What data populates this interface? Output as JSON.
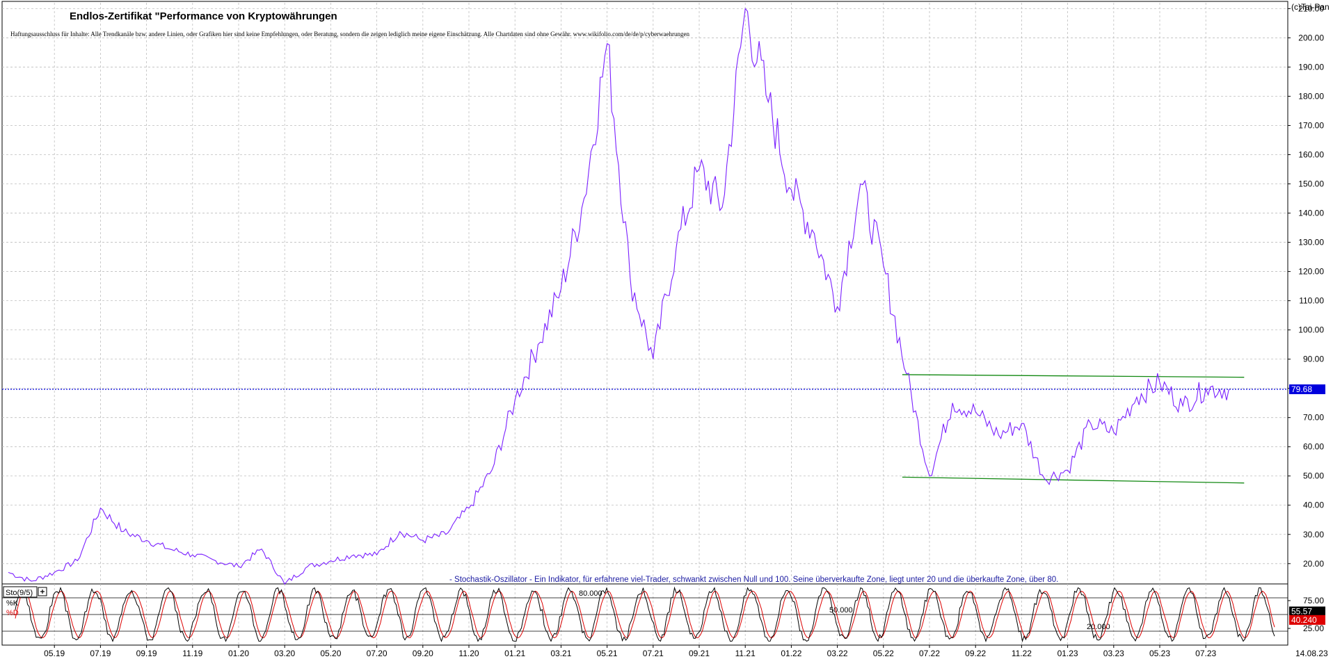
{
  "header": {
    "title": "Endlos-Zertifikat \"Performance von Kryptowährungen",
    "disclaimer": "Haftungsausschluss für Inhalte: Alle Trendkanäle bzw. andere Linien, oder Grafiken hier sind keine Empfehlungen, oder Beratung, sondern die zeigen lediglich meine eigene Einschätzung. Alle Chartdaten sind ohne Gewähr. www.wikifolio.com/de/de/p/cyberwaehrungen",
    "copyright": "(c)Tai-Pan",
    "last_date": "14.08.23"
  },
  "colors": {
    "price": "#7a1fff",
    "trend": "#118811",
    "current": "#0000dd",
    "k_line": "#000000",
    "d_line": "#dd0000",
    "grid": "#bdbdbd"
  },
  "chart_data": [
    {
      "type": "line",
      "name": "price-chart",
      "ylim": [
        14,
        212
      ],
      "y_ticks": [
        "20.00",
        "30.00",
        "40.00",
        "50.00",
        "60.00",
        "70.00",
        "80.00",
        "90.00",
        "100.00",
        "110.00",
        "120.00",
        "130.00",
        "140.00",
        "150.00",
        "160.00",
        "170.00",
        "180.00",
        "190.00",
        "200.00",
        "210.00"
      ],
      "x_ticks": [
        "05.19",
        "07.19",
        "09.19",
        "11.19",
        "01.20",
        "03.20",
        "05.20",
        "07.20",
        "09.20",
        "11.20",
        "01.21",
        "03.21",
        "05.21",
        "07.21",
        "09.21",
        "11.21",
        "01.22",
        "03.22",
        "05.22",
        "07.22",
        "09.22",
        "11.22",
        "01.23",
        "03.23",
        "05.23",
        "07.23"
      ],
      "x": [
        "03.19",
        "04.19",
        "05.19",
        "06.19",
        "07.19",
        "08.19",
        "09.19",
        "10.19",
        "11.19",
        "12.19",
        "01.20",
        "02.20",
        "03.20",
        "04.20",
        "05.20",
        "06.20",
        "07.20",
        "08.20",
        "09.20",
        "10.20",
        "11.20",
        "12.20",
        "01.21",
        "02.21",
        "03.21",
        "04.21",
        "05.21",
        "06.21",
        "07.21",
        "08.21",
        "09.21",
        "10.21",
        "11.21",
        "12.21",
        "01.22",
        "02.22",
        "03.22",
        "04.22",
        "05.22",
        "06.22",
        "07.22",
        "08.22",
        "09.22",
        "10.22",
        "11.22",
        "12.22",
        "01.23",
        "02.23",
        "03.23",
        "04.23",
        "05.23",
        "06.23",
        "07.23",
        "08.23"
      ],
      "series": [
        {
          "values": [
            17,
            14,
            17,
            21,
            39,
            31,
            28,
            25,
            23,
            21,
            19,
            25,
            13,
            19,
            21,
            23,
            23,
            31,
            28,
            30,
            39,
            52,
            76,
            95,
            114,
            145,
            198,
            118,
            90,
            128,
            155,
            142,
            210,
            178,
            148,
            133,
            108,
            150,
            122,
            85,
            50,
            75,
            72,
            64,
            68,
            49,
            52,
            68,
            65,
            77,
            82,
            74,
            80,
            79.68
          ]
        }
      ],
      "current_value": "79.68",
      "trend_lines": [
        {
          "from": [
            "06.22",
            84.7
          ],
          "to": [
            "08.23",
            83.8
          ]
        },
        {
          "from": [
            "06.22",
            49.6
          ],
          "to": [
            "08.23",
            47.6
          ]
        }
      ],
      "annotation": "- Stochastik-Oszillator - Ein Indikator, für erfahrene viel-Trader, schwankt zwischen Null und 100. Seine überverkaufte Zone, liegt unter 20 und die überkaufte Zone, über 80."
    },
    {
      "type": "line",
      "name": "stochastic-oscillator",
      "label": "Sto(9/5)",
      "ylim": [
        0,
        100
      ],
      "y_ticks": [
        "25.00",
        "75.00"
      ],
      "levels": [
        "80.000",
        "50.000",
        "20.000"
      ],
      "series": [
        {
          "name": "%K",
          "last": "55.57"
        },
        {
          "name": "%D",
          "last": "40.240"
        }
      ]
    }
  ]
}
